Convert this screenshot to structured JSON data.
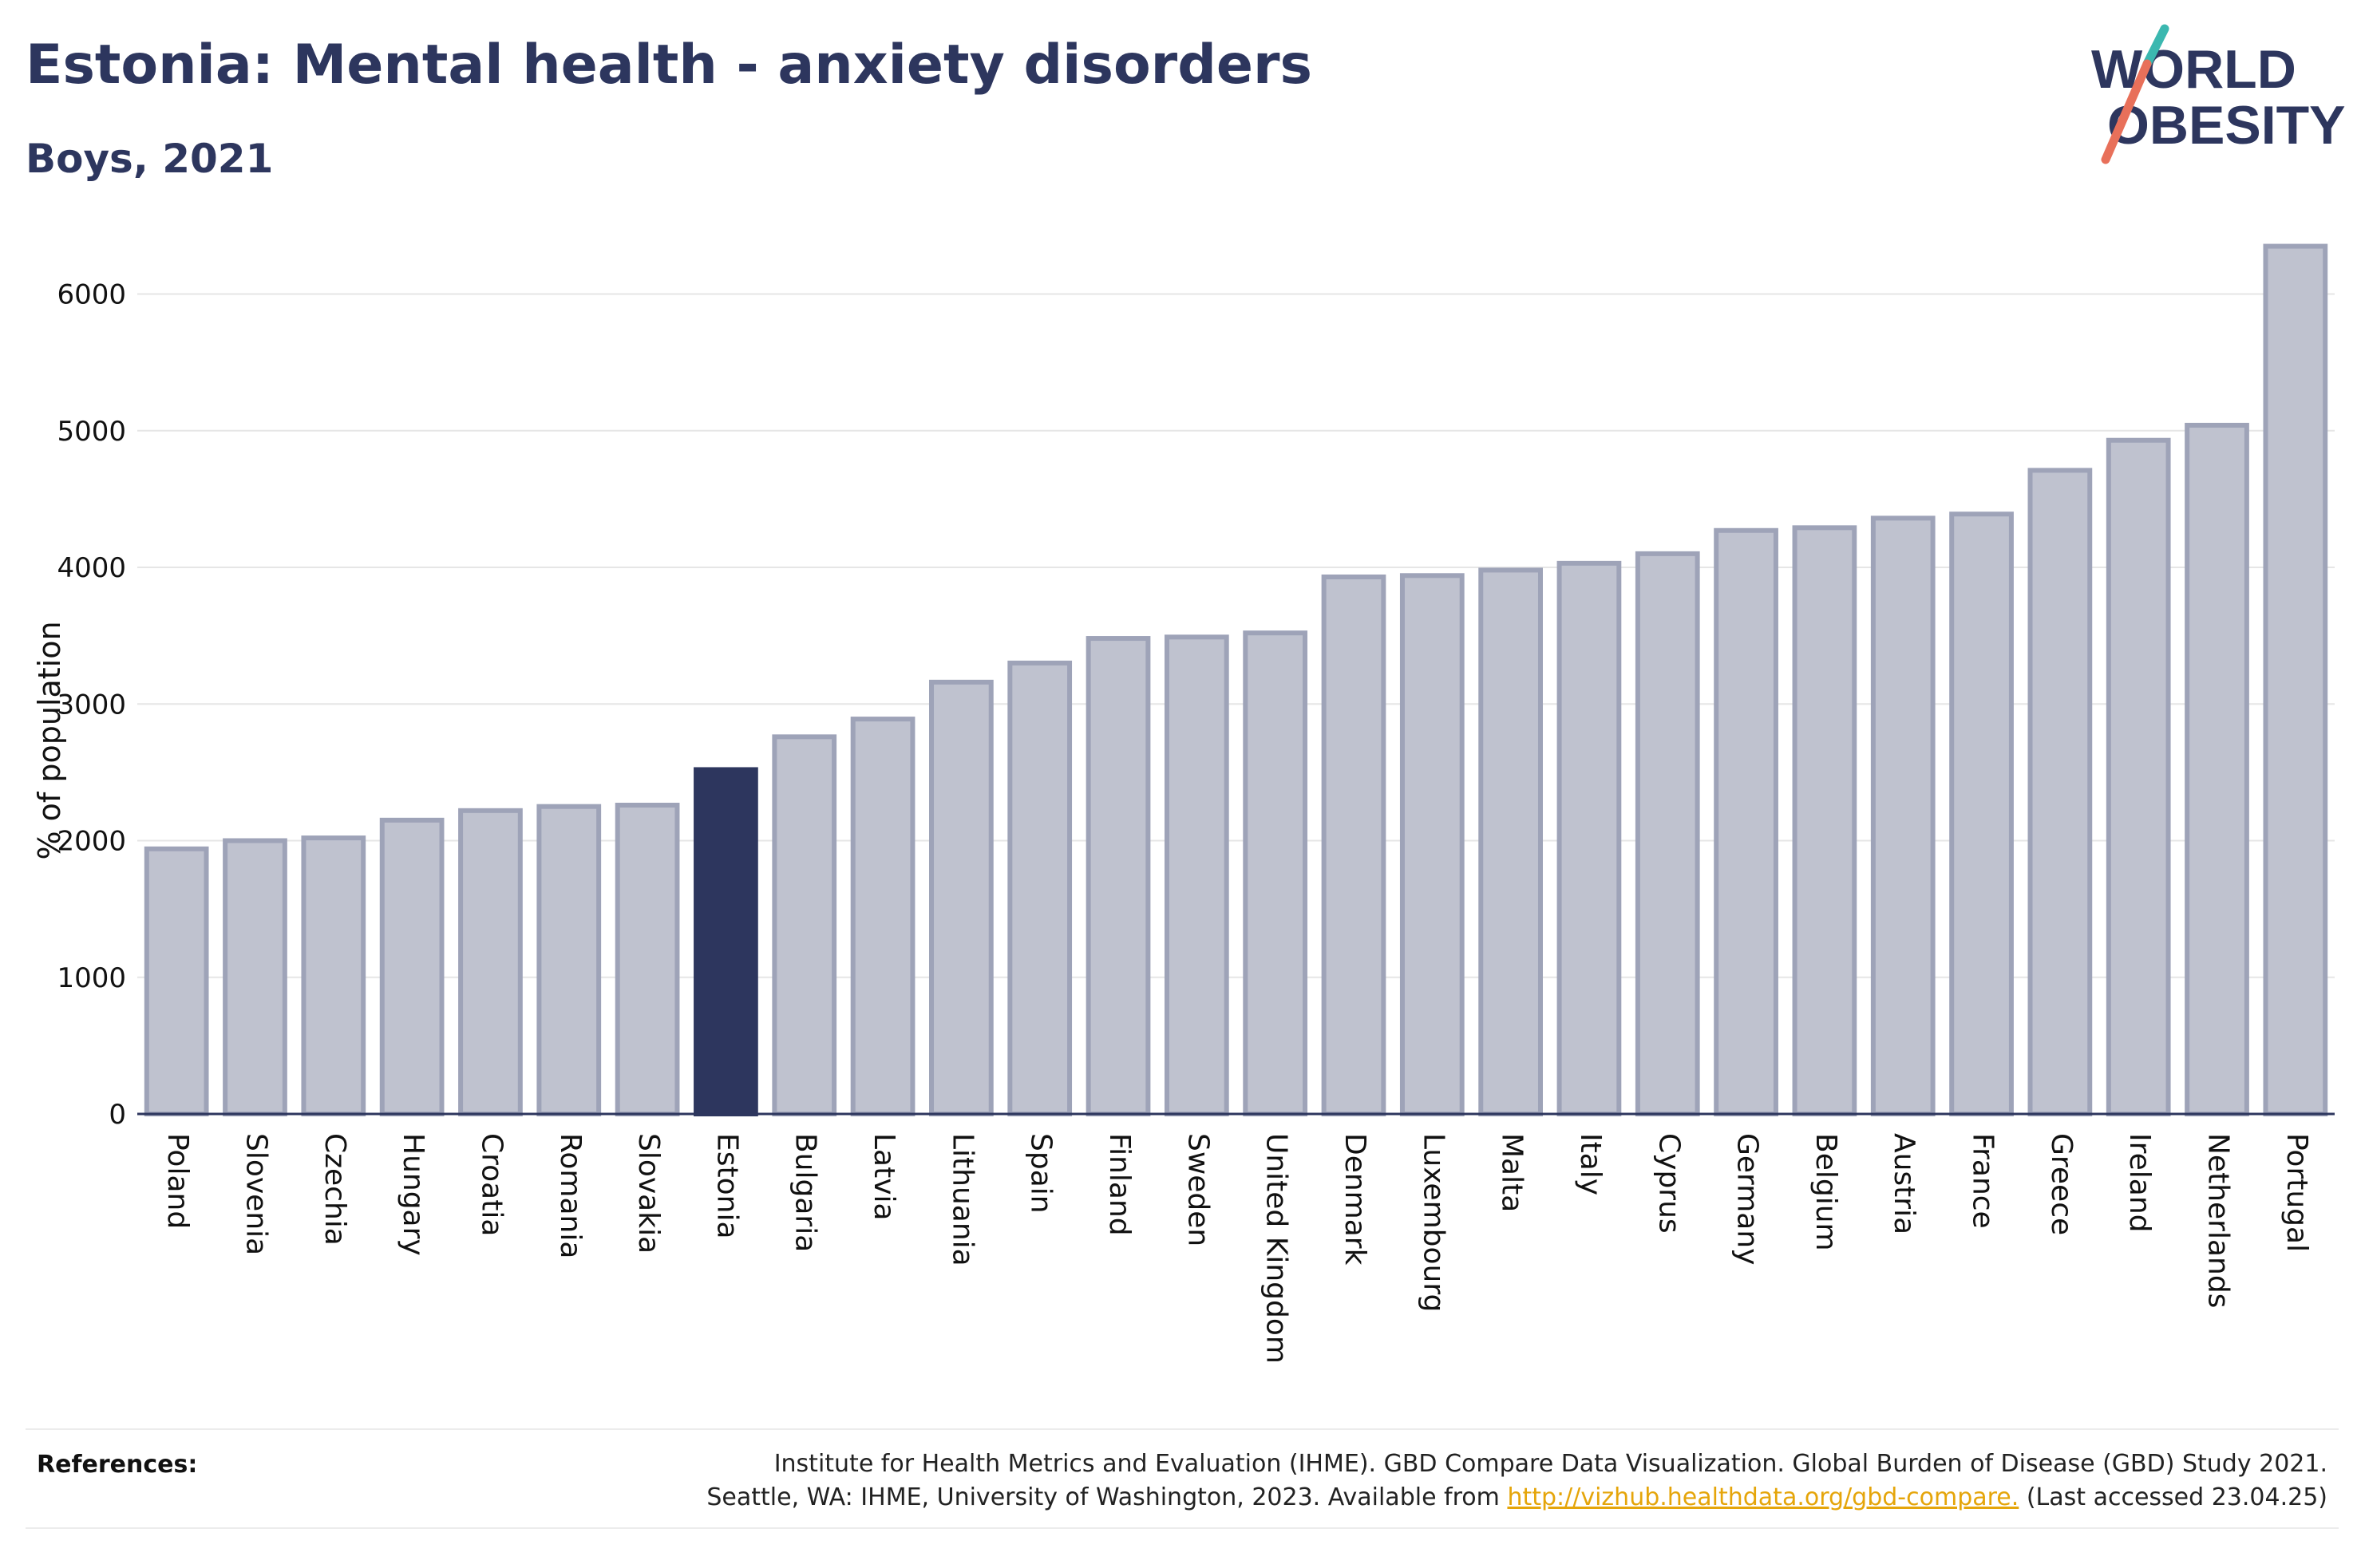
{
  "header": {
    "title": "Estonia: Mental health - anxiety disorders",
    "subtitle": "Boys, 2021"
  },
  "logo": {
    "line1": "WORLD",
    "line2": "OBESITY"
  },
  "colors": {
    "bar": "#bfc2cf",
    "bar_stroke": "#9ea3b8",
    "highlight": "#2d365e",
    "title": "#2d365e",
    "link": "#e5a50a",
    "logo_teal": "#3bb8b0",
    "logo_coral": "#e8705a"
  },
  "chart_data": {
    "type": "bar",
    "ylabel": "% of population",
    "xlabel": "",
    "ylim": [
      0,
      6400
    ],
    "yticks": [
      0,
      1000,
      2000,
      3000,
      4000,
      5000,
      6000
    ],
    "grid": true,
    "highlight": "Estonia",
    "categories": [
      "Poland",
      "Slovenia",
      "Czechia",
      "Hungary",
      "Croatia",
      "Romania",
      "Slovakia",
      "Estonia",
      "Bulgaria",
      "Latvia",
      "Lithuania",
      "Spain",
      "Finland",
      "Sweden",
      "United Kingdom",
      "Denmark",
      "Luxembourg",
      "Malta",
      "Italy",
      "Cyprus",
      "Germany",
      "Belgium",
      "Austria",
      "France",
      "Greece",
      "Ireland",
      "Netherlands",
      "Portugal"
    ],
    "values": [
      1940,
      2000,
      2020,
      2150,
      2220,
      2250,
      2260,
      2520,
      2760,
      2890,
      3160,
      3300,
      3480,
      3490,
      3520,
      3930,
      3940,
      3980,
      4030,
      4100,
      4270,
      4290,
      4360,
      4390,
      4710,
      4930,
      5040,
      6350
    ]
  },
  "references": {
    "label": "References:",
    "line1": "Institute for Health Metrics and Evaluation (IHME). GBD Compare Data Visualization. Global Burden of Disease (GBD) Study 2021.",
    "line2_prefix": "Seattle, WA: IHME, University of Washington, 2023. Available from",
    "link": "http://vizhub.healthdata.org/gbd-compare.",
    "line2_suffix": "(Last accessed 23.04.25)"
  }
}
